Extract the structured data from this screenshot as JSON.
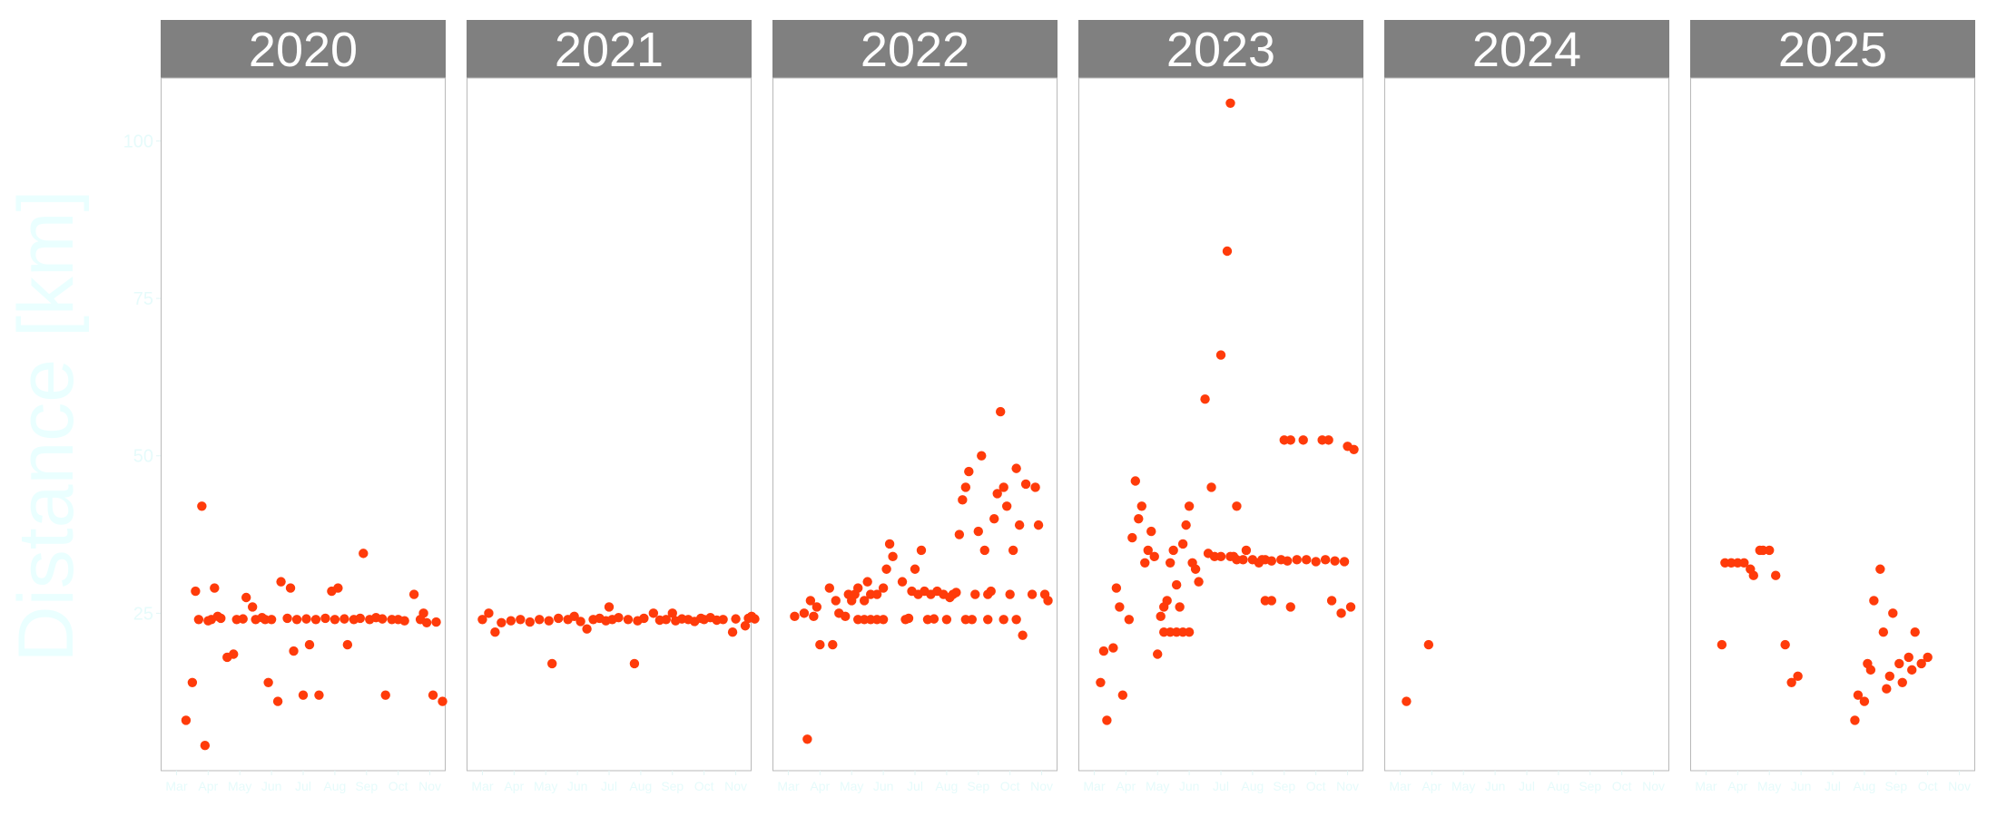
{
  "chart_data": {
    "type": "scatter",
    "facet_by": "year",
    "ylabel": "Distance [km]",
    "xlabel": "",
    "ylim": [
      0,
      110
    ],
    "y_ticks": [
      25,
      50,
      75,
      100
    ],
    "x_ticks": [
      "Mar",
      "Apr",
      "May",
      "Jun",
      "Jul",
      "Aug",
      "Sep",
      "Oct",
      "Nov"
    ],
    "xlim_months": [
      2.5,
      11.5
    ],
    "grid": false,
    "marker_color": "#ff3b0a",
    "strip_color": "#808080",
    "panels": [
      {
        "year": "2020",
        "points": [
          [
            3.3,
            8
          ],
          [
            3.5,
            14
          ],
          [
            3.6,
            28.5
          ],
          [
            3.8,
            42
          ],
          [
            3.9,
            4
          ],
          [
            4.1,
            24
          ],
          [
            4.2,
            29
          ],
          [
            4.3,
            24.5
          ],
          [
            4.6,
            18
          ],
          [
            4.8,
            18.5
          ],
          [
            5.2,
            27.5
          ],
          [
            5.4,
            26
          ],
          [
            5.9,
            14
          ],
          [
            5.8,
            24
          ],
          [
            6.2,
            11
          ],
          [
            6.3,
            30
          ],
          [
            6.6,
            29
          ],
          [
            6.7,
            19
          ],
          [
            7.0,
            12
          ],
          [
            7.2,
            20
          ],
          [
            7.5,
            12
          ],
          [
            7.9,
            28.5
          ],
          [
            8.1,
            29
          ],
          [
            8.4,
            20
          ],
          [
            8.9,
            34.5
          ],
          [
            9.6,
            12
          ],
          [
            10.5,
            28
          ],
          [
            10.8,
            25
          ],
          [
            11.1,
            12
          ],
          [
            11.4,
            11
          ],
          [
            3.7,
            24
          ],
          [
            4.0,
            23.8
          ],
          [
            4.4,
            24.2
          ],
          [
            4.9,
            24
          ],
          [
            5.1,
            24.1
          ],
          [
            5.5,
            24
          ],
          [
            5.7,
            24.3
          ],
          [
            6.0,
            24
          ],
          [
            6.5,
            24.2
          ],
          [
            6.8,
            24
          ],
          [
            7.1,
            24.1
          ],
          [
            7.4,
            24
          ],
          [
            7.7,
            24.2
          ],
          [
            8.0,
            24
          ],
          [
            8.3,
            24.1
          ],
          [
            8.6,
            24
          ],
          [
            8.8,
            24.2
          ],
          [
            9.1,
            24
          ],
          [
            9.3,
            24.3
          ],
          [
            9.5,
            24.1
          ],
          [
            9.8,
            24
          ],
          [
            10.0,
            24
          ],
          [
            10.2,
            23.8
          ],
          [
            10.7,
            24
          ],
          [
            10.9,
            23.5
          ],
          [
            11.2,
            23.6
          ]
        ]
      },
      {
        "year": "2021",
        "points": [
          [
            3.0,
            24
          ],
          [
            3.2,
            25
          ],
          [
            3.4,
            22
          ],
          [
            3.6,
            23.5
          ],
          [
            3.9,
            23.8
          ],
          [
            4.2,
            24
          ],
          [
            4.5,
            23.6
          ],
          [
            4.8,
            24
          ],
          [
            5.1,
            23.8
          ],
          [
            5.2,
            17
          ],
          [
            5.4,
            24.2
          ],
          [
            5.7,
            24
          ],
          [
            5.9,
            24.5
          ],
          [
            6.1,
            23.7
          ],
          [
            6.3,
            22.5
          ],
          [
            6.5,
            24
          ],
          [
            6.7,
            24.2
          ],
          [
            6.9,
            23.8
          ],
          [
            7.0,
            26
          ],
          [
            7.1,
            24
          ],
          [
            7.3,
            24.3
          ],
          [
            7.6,
            24
          ],
          [
            7.8,
            17
          ],
          [
            7.9,
            23.8
          ],
          [
            8.1,
            24.2
          ],
          [
            8.4,
            25
          ],
          [
            8.6,
            23.9
          ],
          [
            8.8,
            24
          ],
          [
            9.0,
            25
          ],
          [
            9.1,
            23.8
          ],
          [
            9.3,
            24.1
          ],
          [
            9.5,
            24
          ],
          [
            9.7,
            23.7
          ],
          [
            9.9,
            24.2
          ],
          [
            10.0,
            24
          ],
          [
            10.2,
            24.3
          ],
          [
            10.4,
            23.9
          ],
          [
            10.6,
            24
          ],
          [
            10.9,
            22
          ],
          [
            11.0,
            24.1
          ],
          [
            11.3,
            23
          ],
          [
            11.5,
            24.5
          ],
          [
            11.6,
            24.1
          ],
          [
            11.4,
            24.2
          ]
        ]
      },
      {
        "year": "2022",
        "points": [
          [
            3.2,
            24.5
          ],
          [
            3.5,
            25
          ],
          [
            3.6,
            5
          ],
          [
            3.7,
            27
          ],
          [
            3.8,
            24.5
          ],
          [
            3.9,
            26
          ],
          [
            4.0,
            20
          ],
          [
            4.3,
            29
          ],
          [
            4.4,
            20
          ],
          [
            4.5,
            27
          ],
          [
            4.6,
            25
          ],
          [
            4.8,
            24.5
          ],
          [
            4.9,
            28
          ],
          [
            5.0,
            27
          ],
          [
            5.1,
            28
          ],
          [
            5.2,
            29
          ],
          [
            5.4,
            27
          ],
          [
            5.5,
            30
          ],
          [
            5.6,
            28
          ],
          [
            5.8,
            28
          ],
          [
            6.0,
            29
          ],
          [
            6.1,
            32
          ],
          [
            6.2,
            36
          ],
          [
            6.3,
            34
          ],
          [
            6.6,
            30
          ],
          [
            6.9,
            28.5
          ],
          [
            7.0,
            32
          ],
          [
            7.1,
            28
          ],
          [
            7.2,
            35
          ],
          [
            7.3,
            28.5
          ],
          [
            7.5,
            28
          ],
          [
            7.7,
            28.5
          ],
          [
            7.9,
            28
          ],
          [
            8.1,
            27.5
          ],
          [
            8.2,
            28
          ],
          [
            8.3,
            28.3
          ],
          [
            8.4,
            37.5
          ],
          [
            8.5,
            43
          ],
          [
            8.6,
            45
          ],
          [
            8.7,
            47.5
          ],
          [
            8.8,
            24
          ],
          [
            8.9,
            28
          ],
          [
            9.0,
            38
          ],
          [
            9.1,
            50
          ],
          [
            9.2,
            35
          ],
          [
            9.3,
            28
          ],
          [
            9.4,
            28.5
          ],
          [
            9.5,
            40
          ],
          [
            9.6,
            44
          ],
          [
            9.7,
            57
          ],
          [
            9.8,
            45
          ],
          [
            9.9,
            42
          ],
          [
            10.0,
            28
          ],
          [
            10.1,
            35
          ],
          [
            10.2,
            48
          ],
          [
            10.3,
            39
          ],
          [
            10.5,
            45.5
          ],
          [
            10.7,
            28
          ],
          [
            10.8,
            45
          ],
          [
            10.9,
            39
          ],
          [
            11.1,
            28
          ],
          [
            11.2,
            27
          ],
          [
            6.7,
            24
          ],
          [
            6.8,
            24.2
          ],
          [
            7.4,
            24
          ],
          [
            7.6,
            24.1
          ],
          [
            8.0,
            24
          ],
          [
            8.6,
            24
          ],
          [
            9.3,
            24
          ],
          [
            9.8,
            24
          ],
          [
            10.2,
            24
          ],
          [
            10.4,
            21.5
          ],
          [
            5.2,
            24
          ],
          [
            5.4,
            24
          ],
          [
            5.6,
            24
          ],
          [
            5.8,
            24
          ],
          [
            6.0,
            24
          ]
        ]
      },
      {
        "year": "2023",
        "points": [
          [
            3.2,
            14
          ],
          [
            3.3,
            19
          ],
          [
            3.4,
            8
          ],
          [
            3.6,
            19.5
          ],
          [
            3.7,
            29
          ],
          [
            3.8,
            26
          ],
          [
            3.9,
            12
          ],
          [
            4.1,
            24
          ],
          [
            4.2,
            37
          ],
          [
            4.3,
            46
          ],
          [
            4.4,
            40
          ],
          [
            4.5,
            42
          ],
          [
            4.6,
            33
          ],
          [
            4.7,
            35
          ],
          [
            4.8,
            38
          ],
          [
            4.9,
            34
          ],
          [
            5.0,
            18.5
          ],
          [
            5.1,
            24.5
          ],
          [
            5.2,
            26
          ],
          [
            5.3,
            27
          ],
          [
            5.4,
            33
          ],
          [
            5.5,
            35
          ],
          [
            5.6,
            29.5
          ],
          [
            5.7,
            26
          ],
          [
            5.8,
            36
          ],
          [
            5.9,
            39
          ],
          [
            6.0,
            42
          ],
          [
            6.1,
            33
          ],
          [
            6.2,
            32
          ],
          [
            6.3,
            30
          ],
          [
            6.5,
            59
          ],
          [
            6.7,
            45
          ],
          [
            7.0,
            66
          ],
          [
            7.2,
            82.5
          ],
          [
            7.3,
            106
          ],
          [
            7.4,
            34
          ],
          [
            7.5,
            42
          ],
          [
            7.8,
            35
          ],
          [
            8.2,
            33
          ],
          [
            8.4,
            33.5
          ],
          [
            9.0,
            52.5
          ],
          [
            9.2,
            52.5
          ],
          [
            9.6,
            52.5
          ],
          [
            10.2,
            52.5
          ],
          [
            10.4,
            52.5
          ],
          [
            11.0,
            51.5
          ],
          [
            11.2,
            51
          ],
          [
            9.2,
            26
          ],
          [
            8.4,
            27
          ],
          [
            8.6,
            27
          ],
          [
            10.5,
            27
          ],
          [
            10.8,
            25
          ],
          [
            11.1,
            26
          ],
          [
            6.6,
            34.5
          ],
          [
            6.8,
            34
          ],
          [
            7.0,
            34
          ],
          [
            7.3,
            34
          ],
          [
            7.5,
            33.5
          ],
          [
            7.7,
            33.5
          ],
          [
            8.0,
            33.5
          ],
          [
            8.3,
            33.5
          ],
          [
            8.6,
            33.3
          ],
          [
            8.9,
            33.5
          ],
          [
            9.1,
            33.3
          ],
          [
            9.4,
            33.5
          ],
          [
            9.7,
            33.5
          ],
          [
            10.0,
            33.2
          ],
          [
            10.3,
            33.5
          ],
          [
            10.6,
            33.3
          ],
          [
            10.9,
            33.2
          ],
          [
            5.2,
            22
          ],
          [
            5.4,
            22
          ],
          [
            5.6,
            22
          ],
          [
            5.8,
            22
          ],
          [
            6.0,
            22
          ]
        ]
      },
      {
        "year": "2024",
        "points": [
          [
            3.2,
            11
          ],
          [
            3.9,
            20
          ]
        ]
      },
      {
        "year": "2025",
        "points": [
          [
            3.5,
            20
          ],
          [
            3.6,
            33
          ],
          [
            3.8,
            33
          ],
          [
            4.0,
            33
          ],
          [
            4.2,
            33
          ],
          [
            4.4,
            32
          ],
          [
            4.5,
            31
          ],
          [
            4.7,
            35
          ],
          [
            4.8,
            35
          ],
          [
            5.0,
            35
          ],
          [
            5.2,
            31
          ],
          [
            5.5,
            20
          ],
          [
            5.7,
            14
          ],
          [
            5.9,
            15
          ],
          [
            7.7,
            8
          ],
          [
            7.8,
            12
          ],
          [
            8.0,
            11
          ],
          [
            8.1,
            17
          ],
          [
            8.2,
            16
          ],
          [
            8.3,
            27
          ],
          [
            8.5,
            32
          ],
          [
            8.6,
            22
          ],
          [
            8.7,
            13
          ],
          [
            8.8,
            15
          ],
          [
            8.9,
            25
          ],
          [
            9.1,
            17
          ],
          [
            9.2,
            14
          ],
          [
            9.4,
            18
          ],
          [
            9.5,
            16
          ],
          [
            9.6,
            22
          ],
          [
            9.8,
            17
          ],
          [
            10.0,
            18
          ]
        ]
      }
    ]
  }
}
